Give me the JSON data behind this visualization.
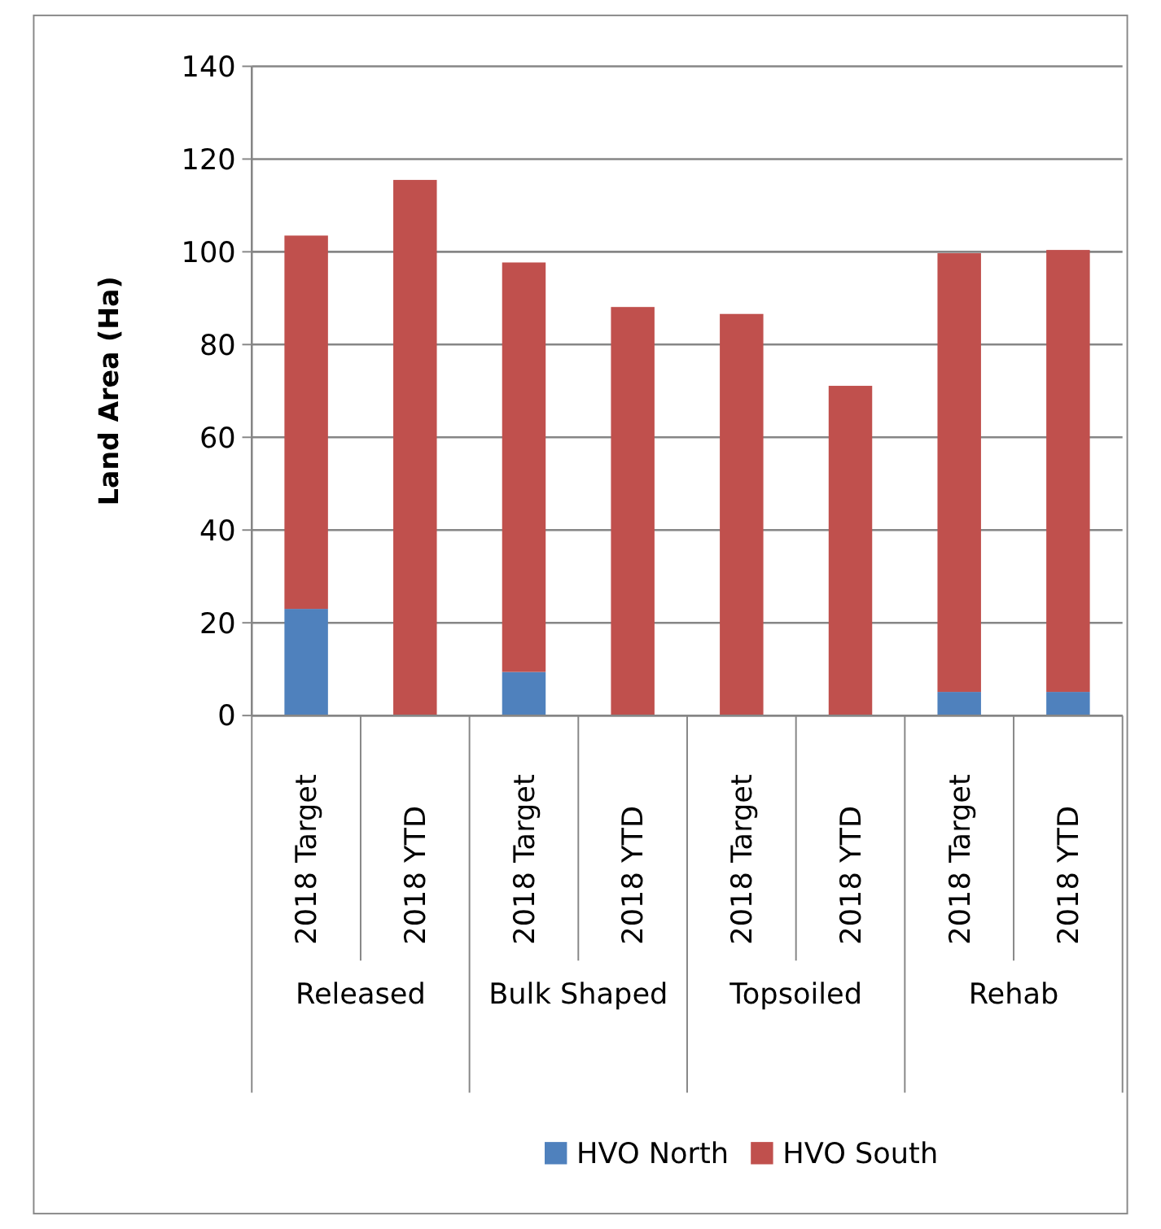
{
  "chart_data": {
    "type": "bar",
    "stacked": true,
    "ylabel": "Land Area (Ha)",
    "categories": [
      "2018 Target",
      "2018 YTD",
      "2018 Target",
      "2018 YTD",
      "2018 Target",
      "2018 YTD",
      "2018 Target",
      "2018 YTD"
    ],
    "series": [
      {
        "name": "HVO North",
        "color": "#4f81bd",
        "values": [
          23,
          0,
          9.4,
          0,
          0,
          0,
          5.1,
          5.1
        ]
      },
      {
        "name": "HVO South",
        "color": "#c0504d",
        "values": [
          80.5,
          115.5,
          88.3,
          88.1,
          86.6,
          71.1,
          94.6,
          95.3
        ]
      }
    ],
    "annotations": [
      "Released",
      "Bulk Shaped",
      "Topsoiled",
      "Rehab"
    ],
    "ylim": [
      0,
      140
    ],
    "yticks": [
      0,
      20,
      40,
      60,
      80,
      100,
      120,
      140
    ],
    "grid": "y",
    "legend": "bottom"
  }
}
